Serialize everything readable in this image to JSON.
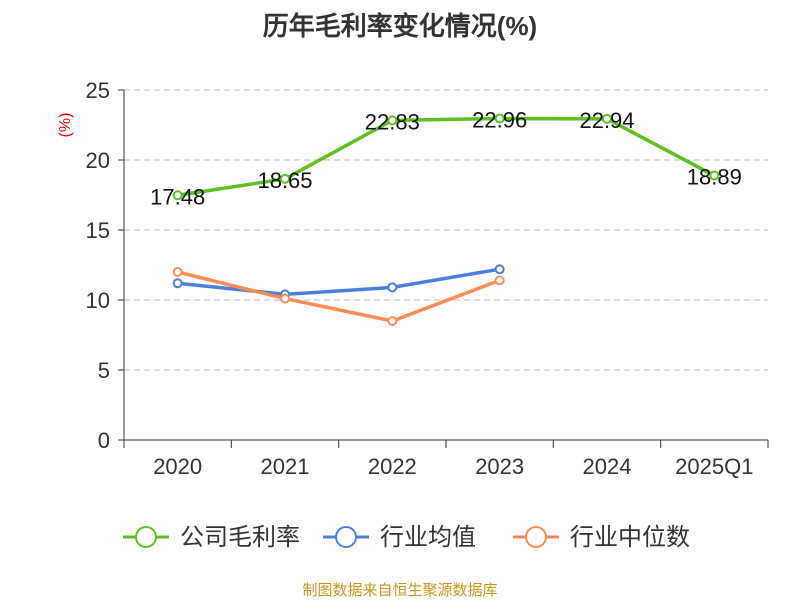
{
  "chart_data": {
    "type": "line",
    "title": "历年毛利率变化情况(%)",
    "ylabel": "(%)",
    "xlabel": "",
    "ylim": [
      0,
      25
    ],
    "yticks": [
      0,
      5,
      10,
      15,
      20,
      25
    ],
    "grid": true,
    "legend_position": "bottom",
    "categories": [
      "2020",
      "2021",
      "2022",
      "2023",
      "2024",
      "2025Q1"
    ],
    "series": [
      {
        "name": "公司毛利率",
        "color": "#5cc11f",
        "values": [
          17.48,
          18.65,
          22.83,
          22.96,
          22.94,
          18.89
        ],
        "labels": [
          "17.48",
          "18.65",
          "22.83",
          "22.96",
          "22.94",
          "18.89"
        ]
      },
      {
        "name": "行业均值",
        "color": "#4a7fe0",
        "values": [
          11.2,
          10.4,
          10.9,
          12.2,
          null,
          null
        ]
      },
      {
        "name": "行业中位数",
        "color": "#fb8c55",
        "values": [
          12.0,
          10.1,
          8.5,
          11.4,
          null,
          null
        ]
      }
    ]
  },
  "source": "制图数据来自恒生聚源数据库"
}
